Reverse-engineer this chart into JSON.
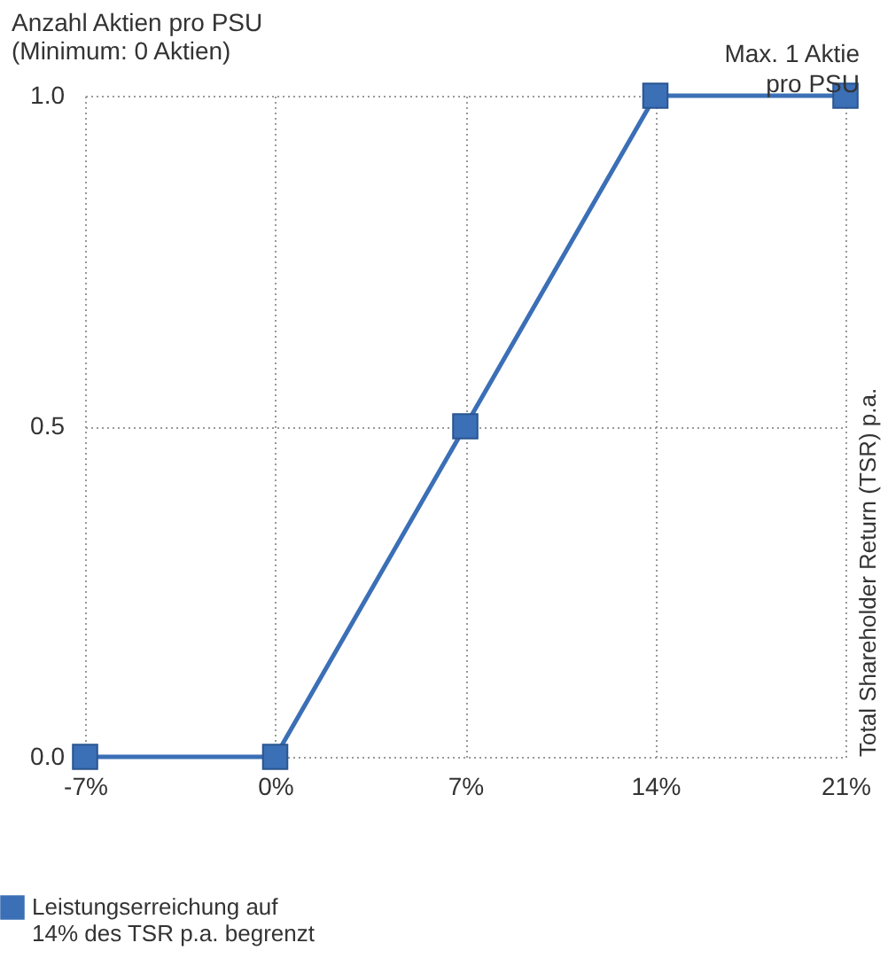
{
  "chart_data": {
    "type": "line",
    "ylabel": "Anzahl Aktien pro PSU\n(Minimum: 0 Aktien)",
    "x": [
      -7,
      0,
      7,
      14,
      21
    ],
    "series": [
      {
        "name": "Leistungserreichung auf 14% des TSR p.a. begrenzt",
        "color": "#3b6fb6",
        "values": [
          0,
          0,
          0.5,
          1,
          1
        ]
      }
    ],
    "xlim": [
      -7,
      21
    ],
    "xticks": [
      {
        "value": -7,
        "label": "-7%"
      },
      {
        "value": 0,
        "label": "0%"
      },
      {
        "value": 7,
        "label": "7%"
      },
      {
        "value": 14,
        "label": "14%"
      },
      {
        "value": 21,
        "label": "21%"
      }
    ],
    "ylim": [
      0,
      1
    ],
    "yticks": [
      {
        "value": 0,
        "label": "0.0"
      },
      {
        "value": 0.5,
        "label": "0.5"
      },
      {
        "value": 1,
        "label": "1.0"
      }
    ],
    "annotations": [
      {
        "text": "Max. 1 Aktie\npro PSU",
        "x": 21,
        "y": 1
      },
      "Total Shareholder Return (TSR) p.a."
    ],
    "grid": true,
    "legend": "bottom left",
    "marker": "square",
    "line_style": "solid"
  }
}
